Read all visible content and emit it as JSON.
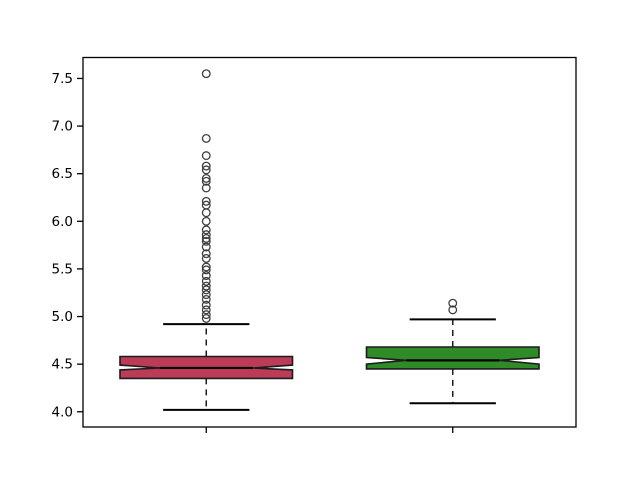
{
  "chart_data": {
    "type": "boxplot",
    "title": "",
    "xlabel": "",
    "ylabel": "",
    "grid": false,
    "notched": true,
    "background_color": "#ffffff",
    "frame_color": "#000000",
    "edge_color": "#1c1c1c",
    "median_color": "#000000",
    "whisker_color": "#1c1c1c",
    "flier_color": "#3f3f3f",
    "ylim": [
      3.84,
      7.72
    ],
    "xlim": [
      0.5,
      2.5
    ],
    "yticks": [
      4.0,
      4.5,
      5.0,
      5.5,
      6.0,
      6.5,
      7.0,
      7.5
    ],
    "ytick_labels": [
      "4.0",
      "4.5",
      "5.0",
      "5.5",
      "6.0",
      "6.5",
      "7.0",
      "7.5"
    ],
    "xtick_positions": [
      1,
      2
    ],
    "xtick_labels": [
      "",
      ""
    ],
    "box_width": 0.7,
    "cap_width": 0.35,
    "notch_indent_frac": 0.23,
    "series": [
      {
        "name": "box-1-red",
        "position": 1,
        "fill_color": "#bc3b57",
        "q1": 4.35,
        "median": 4.46,
        "q3": 4.58,
        "notch_lo": 4.44,
        "notch_hi": 4.49,
        "whisker_lo": 4.02,
        "whisker_hi": 4.92,
        "fliers": [
          4.98,
          5.02,
          5.07,
          5.12,
          5.18,
          5.23,
          5.28,
          5.32,
          5.37,
          5.43,
          5.49,
          5.52,
          5.61,
          5.66,
          5.73,
          5.79,
          5.82,
          5.86,
          5.91,
          6.0,
          6.09,
          6.17,
          6.21,
          6.35,
          6.42,
          6.45,
          6.54,
          6.58,
          6.69,
          6.87,
          7.55
        ]
      },
      {
        "name": "box-2-green",
        "position": 2,
        "fill_color": "#2f8b28",
        "q1": 4.45,
        "median": 4.54,
        "q3": 4.68,
        "notch_lo": 4.5,
        "notch_hi": 4.57,
        "whisker_lo": 4.09,
        "whisker_hi": 4.97,
        "fliers": [
          5.07,
          5.14
        ]
      }
    ]
  }
}
